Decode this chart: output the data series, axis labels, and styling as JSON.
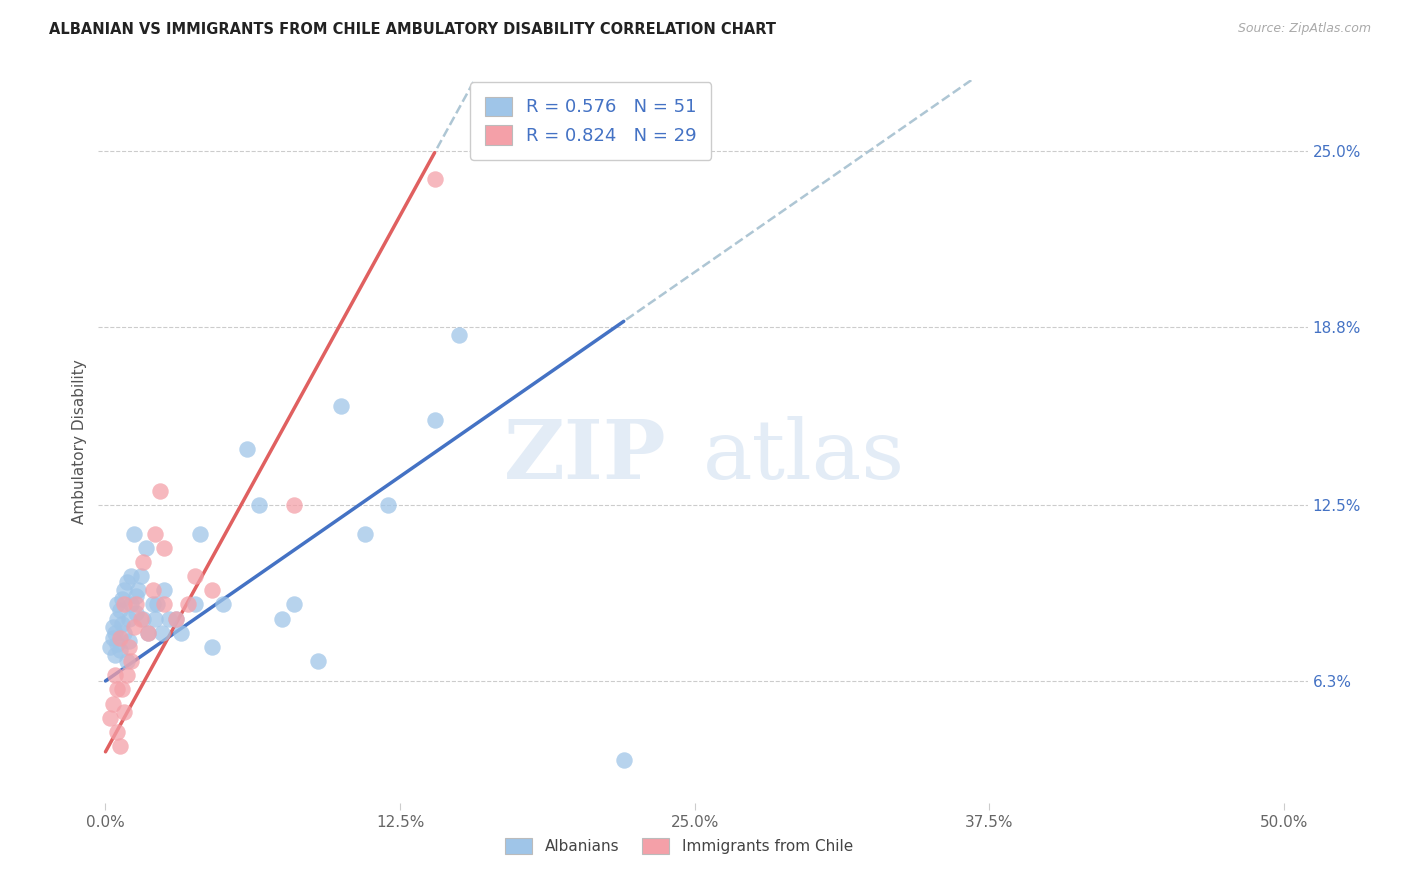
{
  "title": "ALBANIAN VS IMMIGRANTS FROM CHILE AMBULATORY DISABILITY CORRELATION CHART",
  "source_text": "Source: ZipAtlas.com",
  "ylabel": "Ambulatory Disability",
  "xlabel_vals": [
    0.0,
    12.5,
    25.0,
    37.5,
    50.0
  ],
  "ylabel_vals": [
    6.3,
    12.5,
    18.8,
    25.0
  ],
  "ylabel_labels": [
    "6.3%",
    "12.5%",
    "18.8%",
    "25.0%"
  ],
  "xlim": [
    -0.3,
    51.0
  ],
  "ylim": [
    2.0,
    27.5
  ],
  "label1": "Albanians",
  "label2": "Immigrants from Chile",
  "r1": "0.576",
  "n1": "51",
  "r2": "0.824",
  "n2": "29",
  "color_blue_scatter": "#9fc5e8",
  "color_pink_scatter": "#f4a0a8",
  "color_blue_line": "#4472c4",
  "color_pink_line": "#e06060",
  "color_dash": "#aec6d4",
  "color_text_blue": "#4472c4",
  "watermark_zip": "ZIP",
  "watermark_atlas": "atlas",
  "albanians_x": [
    0.2,
    0.3,
    0.3,
    0.4,
    0.4,
    0.5,
    0.5,
    0.5,
    0.6,
    0.6,
    0.7,
    0.7,
    0.8,
    0.8,
    0.9,
    0.9,
    1.0,
    1.0,
    1.1,
    1.1,
    1.2,
    1.3,
    1.3,
    1.4,
    1.5,
    1.6,
    1.7,
    1.8,
    2.0,
    2.1,
    2.2,
    2.4,
    2.5,
    2.7,
    3.0,
    3.2,
    3.8,
    4.0,
    4.5,
    5.0,
    6.0,
    6.5,
    7.5,
    8.0,
    9.0,
    10.0,
    11.0,
    12.0,
    14.0,
    15.0,
    22.0
  ],
  "albanians_y": [
    7.5,
    8.2,
    7.8,
    8.0,
    7.2,
    8.5,
    7.6,
    9.0,
    8.8,
    7.4,
    9.2,
    8.3,
    8.0,
    9.5,
    7.0,
    9.8,
    8.5,
    7.7,
    9.0,
    10.0,
    11.5,
    9.3,
    8.7,
    9.5,
    10.0,
    8.5,
    11.0,
    8.0,
    9.0,
    8.5,
    9.0,
    8.0,
    9.5,
    8.5,
    8.5,
    8.0,
    9.0,
    11.5,
    7.5,
    9.0,
    14.5,
    12.5,
    8.5,
    9.0,
    7.0,
    16.0,
    11.5,
    12.5,
    15.5,
    18.5,
    3.5
  ],
  "chile_x": [
    0.2,
    0.3,
    0.4,
    0.5,
    0.5,
    0.6,
    0.6,
    0.7,
    0.8,
    0.8,
    0.9,
    1.0,
    1.1,
    1.2,
    1.3,
    1.5,
    1.6,
    1.8,
    2.0,
    2.1,
    2.3,
    2.5,
    2.5,
    3.0,
    3.5,
    3.8,
    4.5,
    8.0,
    14.0
  ],
  "chile_y": [
    5.0,
    5.5,
    6.5,
    6.0,
    4.5,
    7.8,
    4.0,
    6.0,
    9.0,
    5.2,
    6.5,
    7.5,
    7.0,
    8.2,
    9.0,
    8.5,
    10.5,
    8.0,
    9.5,
    11.5,
    13.0,
    11.0,
    9.0,
    8.5,
    9.0,
    10.0,
    9.5,
    12.5,
    24.0
  ]
}
